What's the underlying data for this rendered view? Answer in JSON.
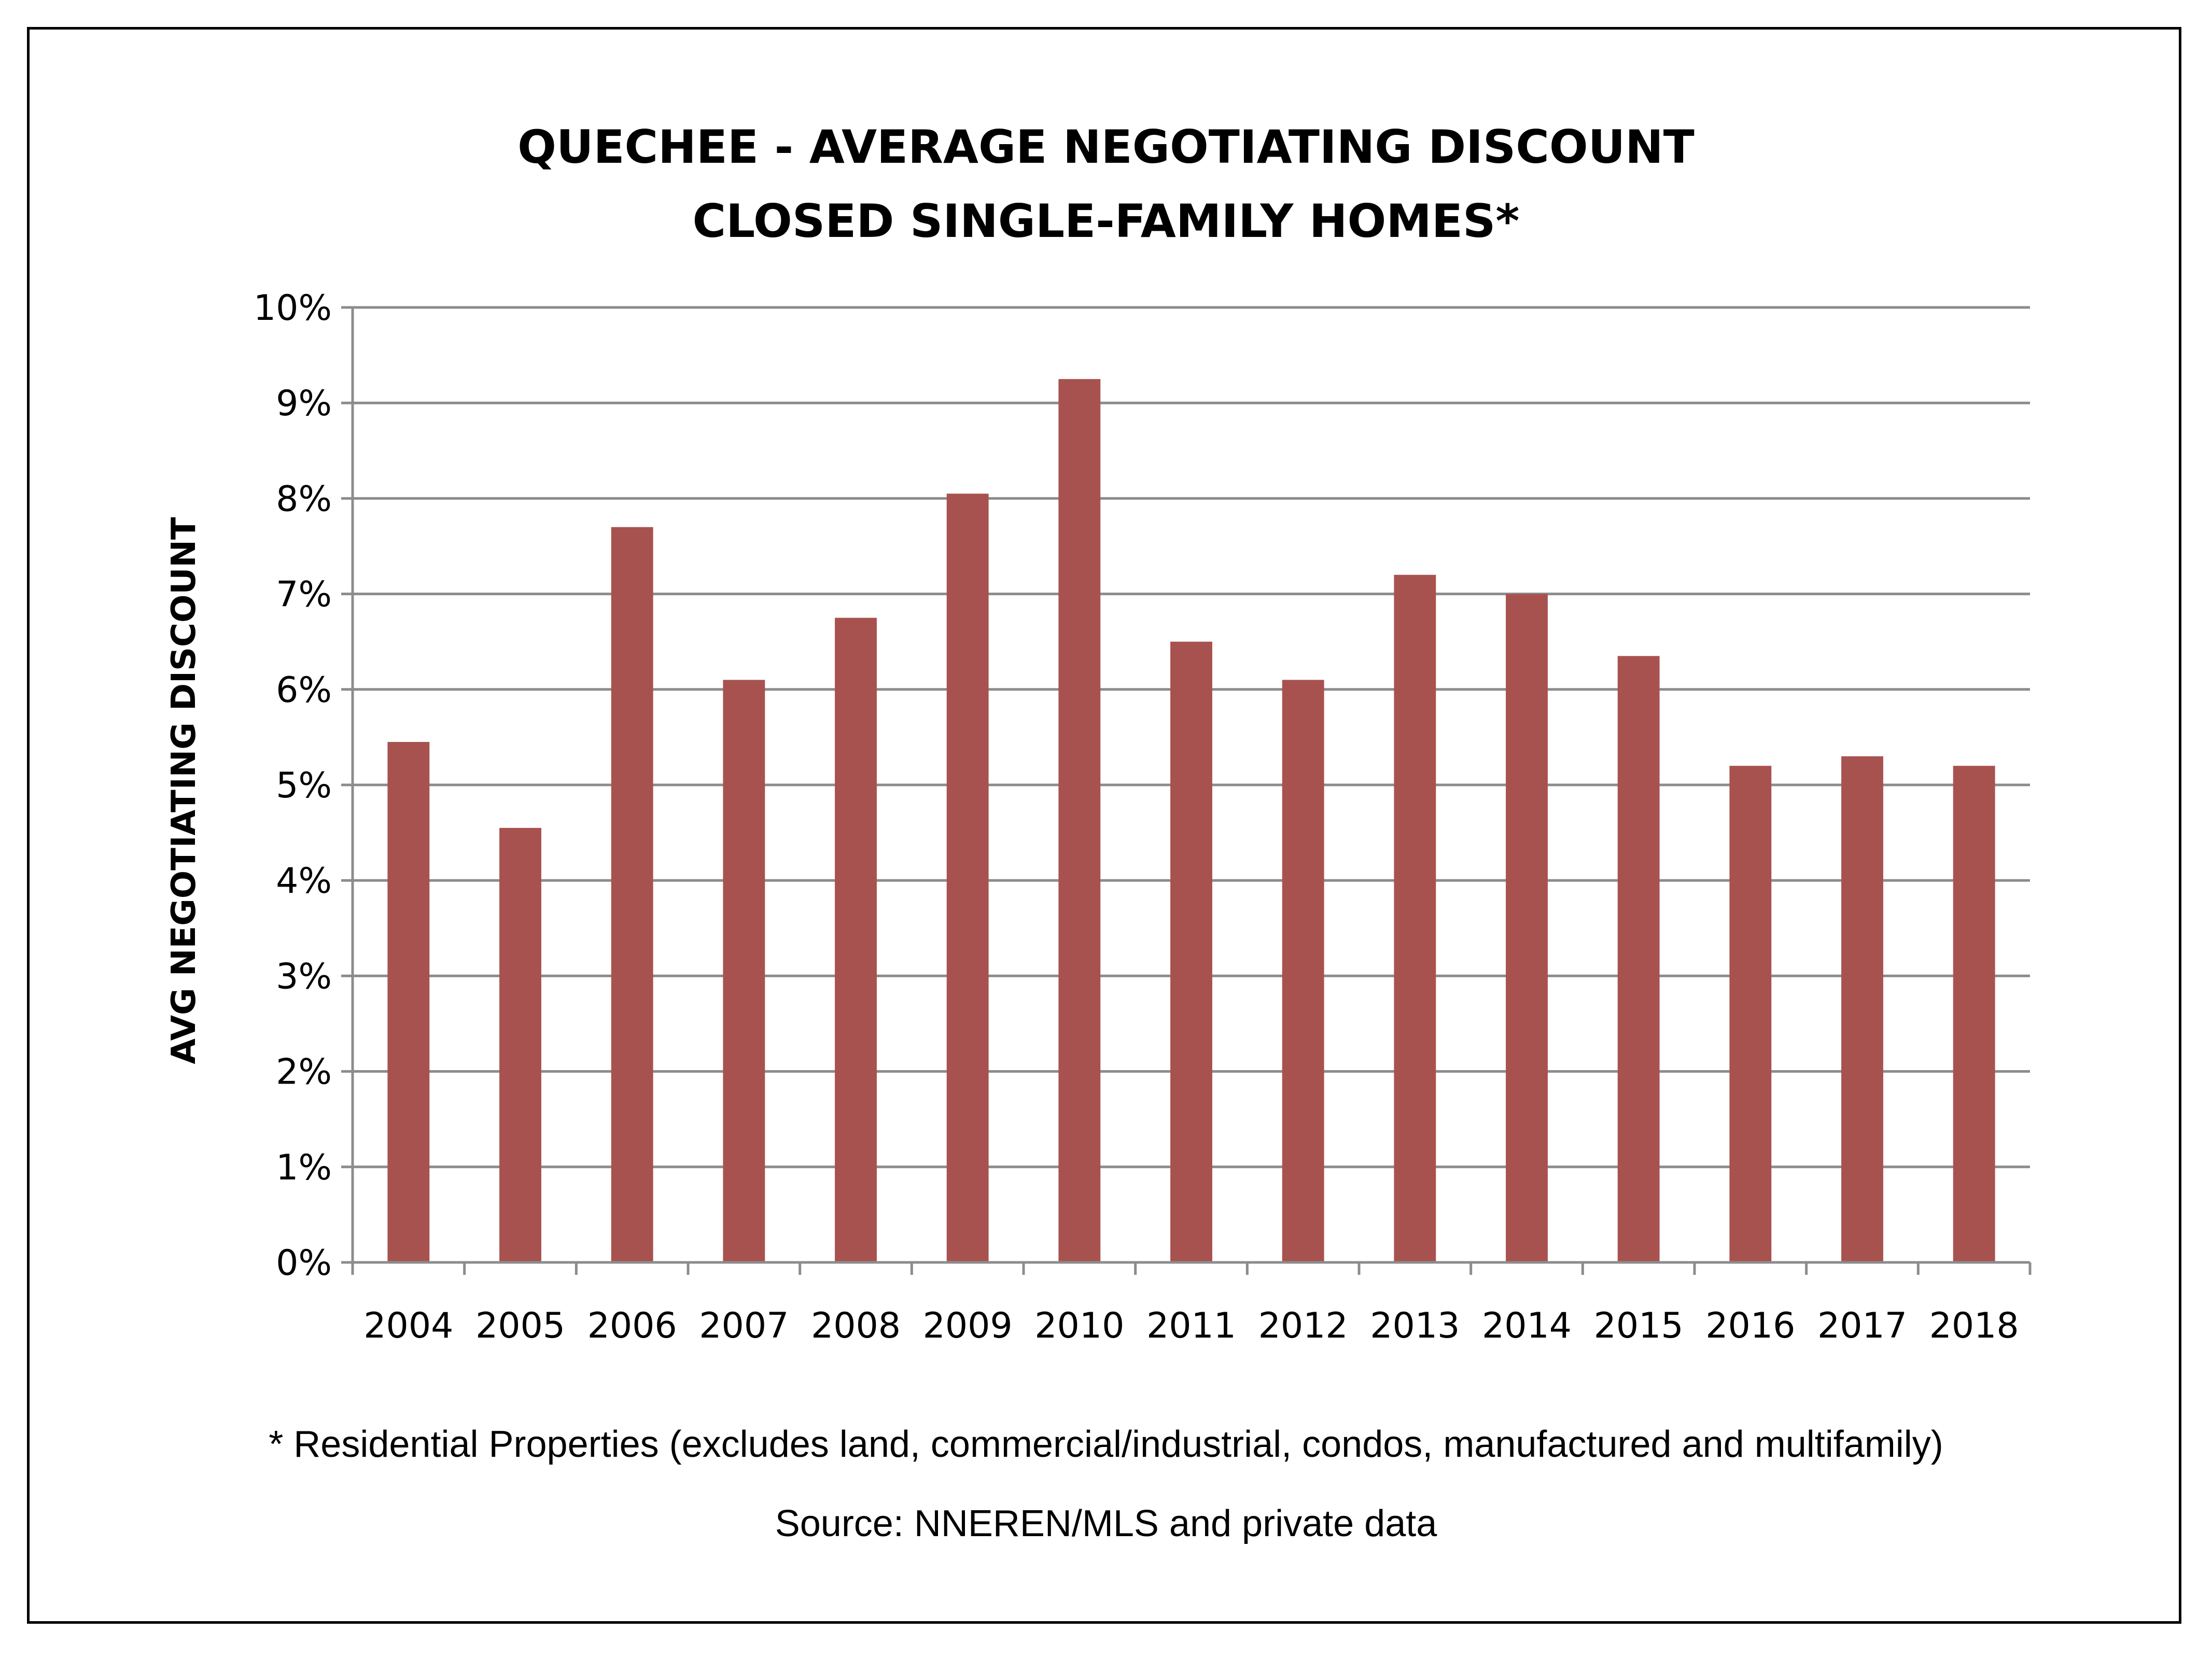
{
  "chart_data": {
    "type": "bar",
    "title": "QUECHEE - AVERAGE NEGOTIATING DISCOUNT",
    "subtitle": "CLOSED SINGLE-FAMILY HOMES*",
    "xlabel": "",
    "ylabel": "AVG NEGOTIATING DISCOUNT",
    "categories": [
      "2004",
      "2005",
      "2006",
      "2007",
      "2008",
      "2009",
      "2010",
      "2011",
      "2012",
      "2013",
      "2014",
      "2015",
      "2016",
      "2017",
      "2018"
    ],
    "values": [
      5.45,
      4.55,
      7.7,
      6.1,
      6.75,
      8.05,
      9.25,
      6.5,
      6.1,
      7.2,
      7.0,
      6.35,
      5.2,
      5.3,
      5.2
    ],
    "ylim": [
      0,
      10
    ],
    "yticks": [
      "0%",
      "1%",
      "2%",
      "3%",
      "4%",
      "5%",
      "6%",
      "7%",
      "8%",
      "9%",
      "10%"
    ],
    "grid": true,
    "legend": "none",
    "bar_color": "#a85250",
    "grid_color": "#8c8c8c"
  },
  "footnote": "* Residential Properties (excludes land, commercial/industrial, condos, manufactured and multifamily)",
  "source": "Source: NNEREN/MLS and private data"
}
